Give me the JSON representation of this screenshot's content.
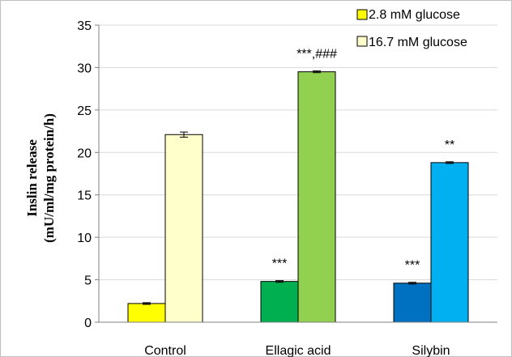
{
  "chart_data": {
    "type": "bar",
    "categories": [
      "Control",
      "Ellagic acid",
      "Silybin"
    ],
    "ylabel_lines": [
      "Inslin release",
      "(mU/ml/mg protein/h)"
    ],
    "ylim": [
      0,
      35
    ],
    "yticks": [
      0,
      5,
      10,
      15,
      20,
      25,
      30,
      35
    ],
    "grid": true,
    "legend_position": "top-right",
    "series": [
      {
        "name": "2.8 mM glucose",
        "values": [
          2.2,
          4.8,
          4.6
        ],
        "errors": [
          0.1,
          0.1,
          0.1
        ],
        "colors": [
          "#ffff00",
          "#00b050",
          "#0070c0"
        ],
        "annotations": [
          "",
          "***",
          "***"
        ]
      },
      {
        "name": "16.7 mM glucose",
        "values": [
          22.1,
          29.5,
          18.8
        ],
        "errors": [
          0.3,
          0.1,
          0.1
        ],
        "colors": [
          "#ffffcc",
          "#92d050",
          "#00b0f0"
        ],
        "annotations": [
          "",
          "***,###",
          "**"
        ]
      }
    ],
    "legend_colors": [
      "#ffff00",
      "#ffffcc"
    ]
  }
}
